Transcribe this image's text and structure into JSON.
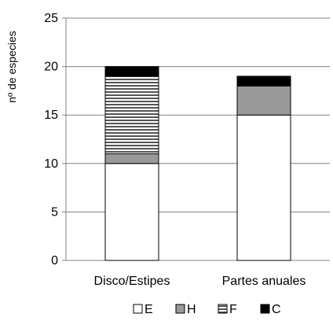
{
  "chart_data": {
    "type": "bar",
    "stacked": true,
    "ylabel": "nº de especies",
    "ylim": [
      0,
      25
    ],
    "yticks": [
      0,
      5,
      10,
      15,
      20,
      25
    ],
    "grid": true,
    "legend_placement": "bottom",
    "categories": [
      "Disco/Estipes",
      "Partes anuales"
    ],
    "series": [
      {
        "name": "E",
        "values": [
          10,
          15
        ],
        "fill": "#ffffff",
        "pattern": "none"
      },
      {
        "name": "H",
        "values": [
          1,
          3
        ],
        "fill": "#999999",
        "pattern": "none"
      },
      {
        "name": "F",
        "values": [
          8,
          0
        ],
        "fill": "#ffffff",
        "pattern": "horizontal-stripes"
      },
      {
        "name": "C",
        "values": [
          1,
          1
        ],
        "fill": "#000000",
        "pattern": "none"
      }
    ]
  }
}
